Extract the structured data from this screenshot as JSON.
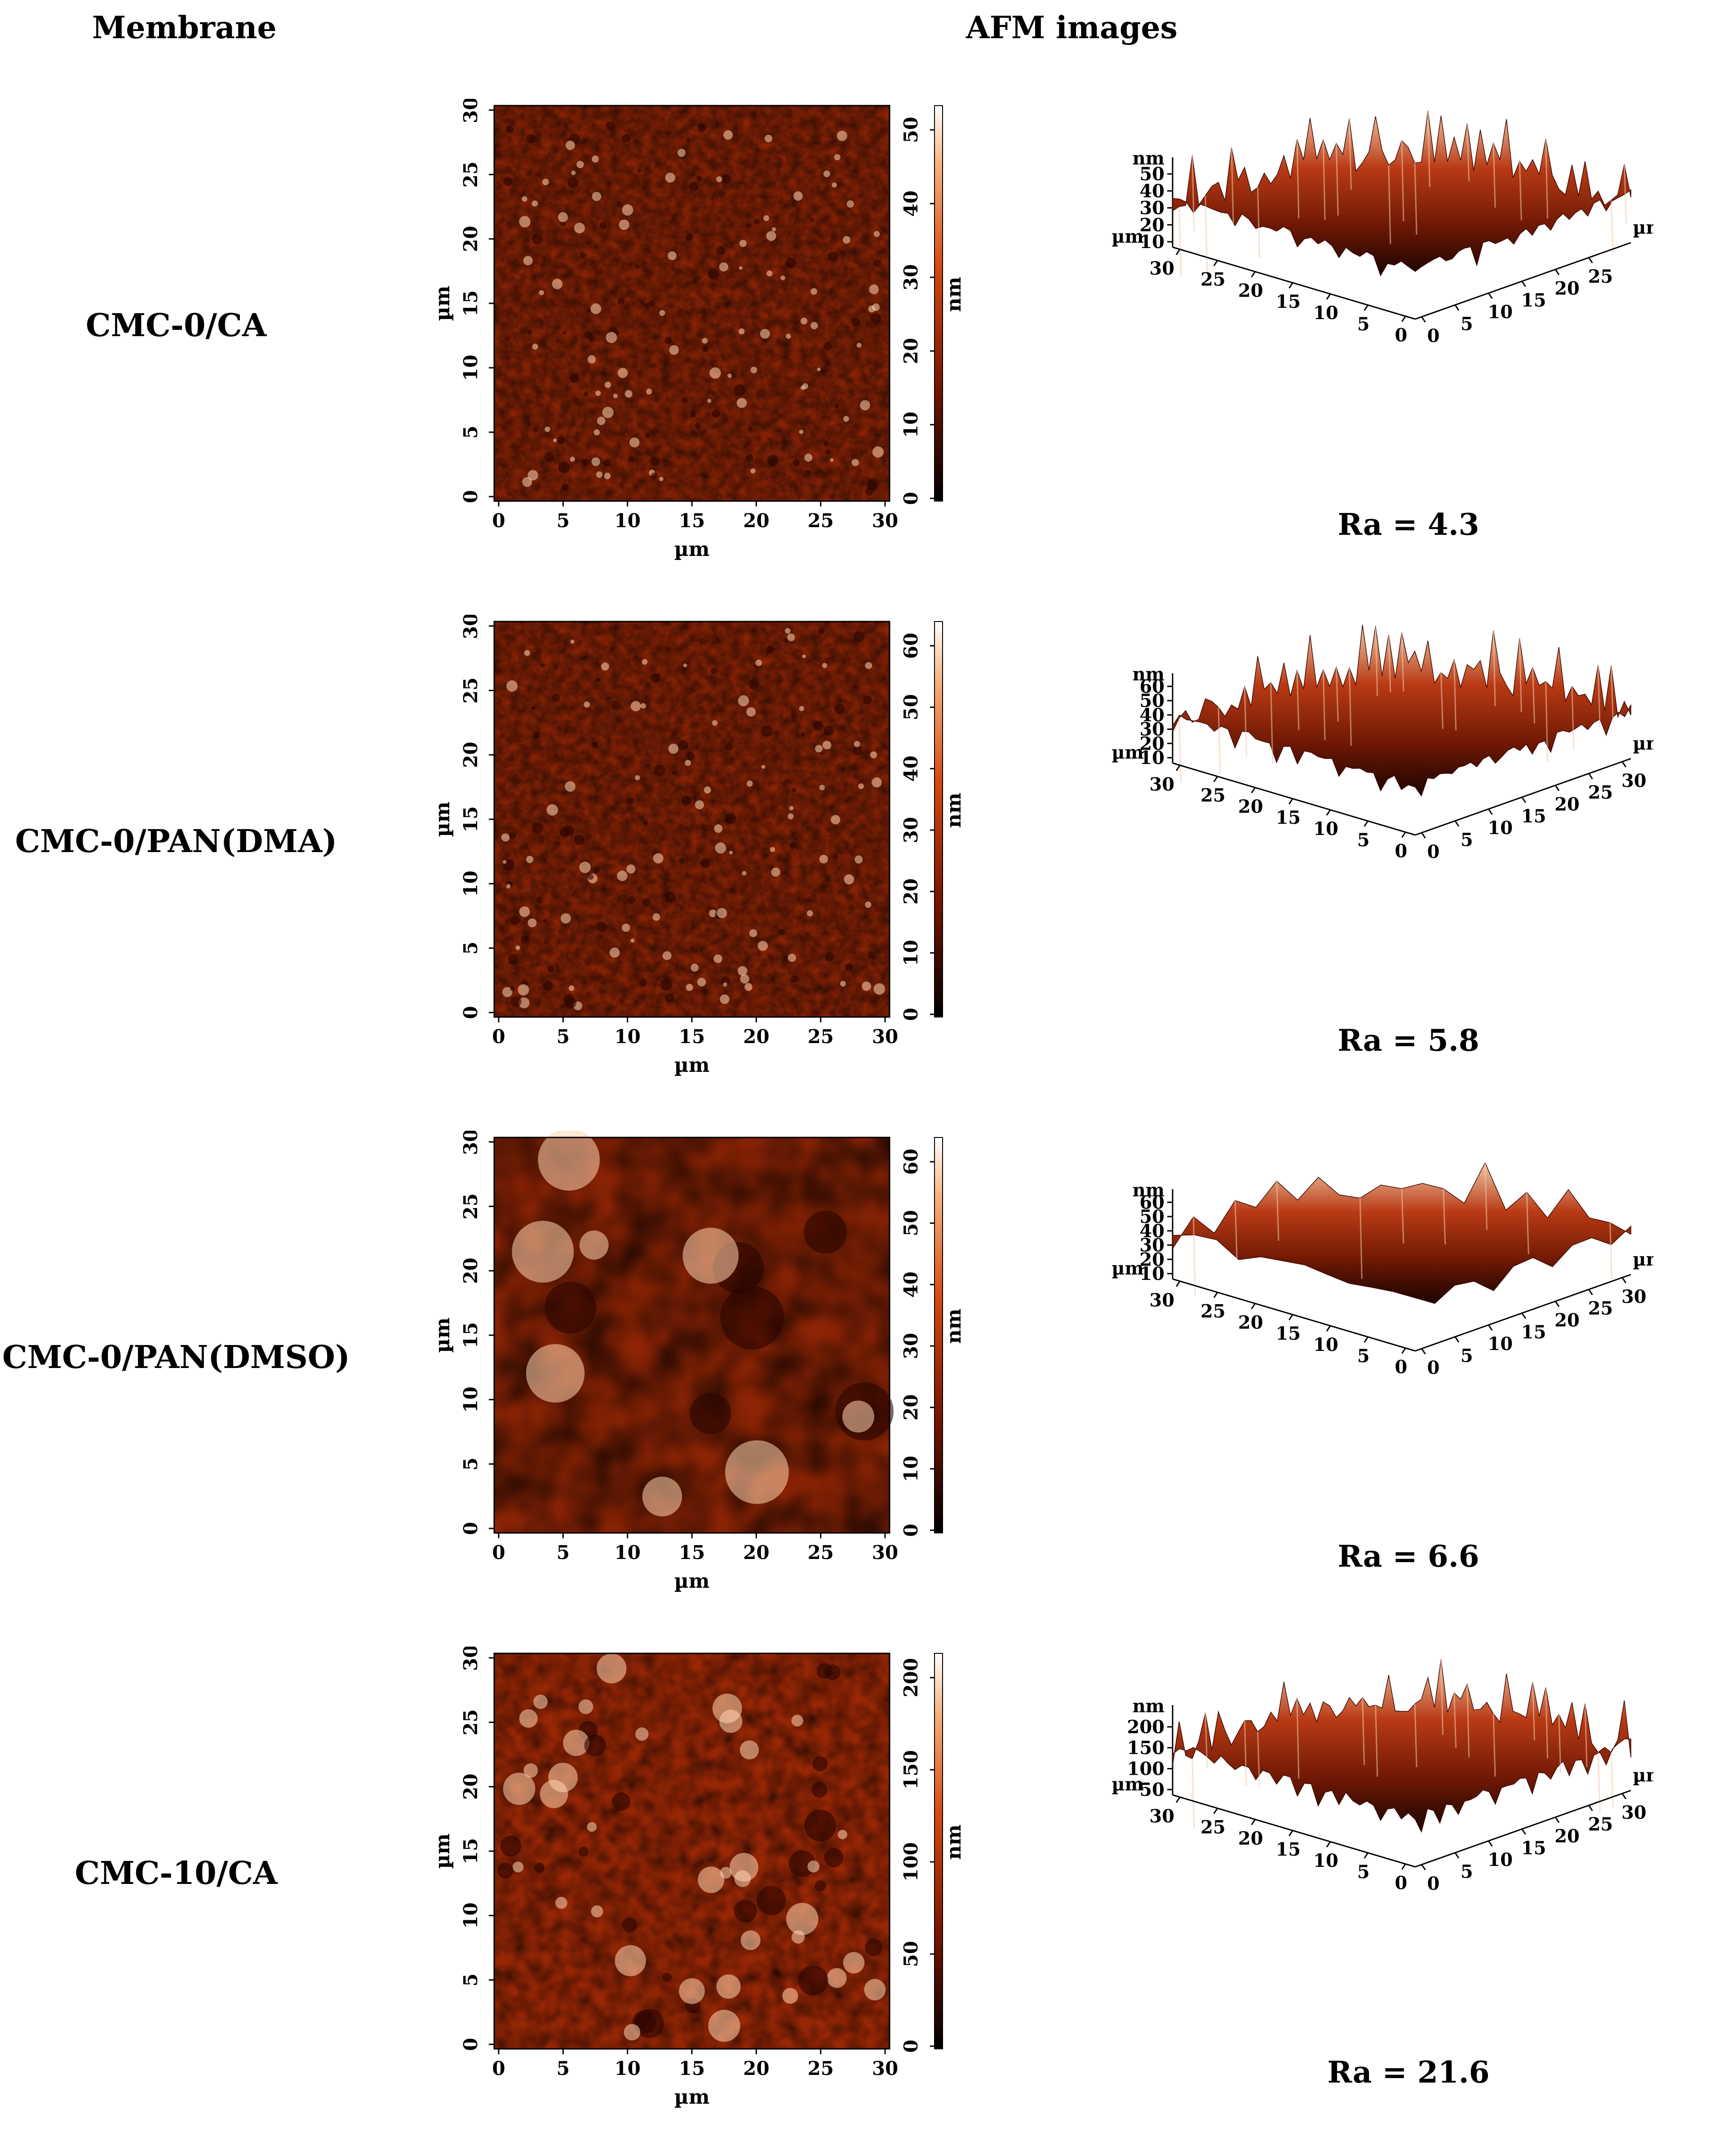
{
  "headers": {
    "membrane": "Membrane",
    "afm": "AFM images"
  },
  "axis_unit": "µm",
  "height_unit": "nm",
  "xy_ticks": [
    "0",
    "5",
    "10",
    "15",
    "20",
    "25",
    "30"
  ],
  "colormap": {
    "low": "#1a0200",
    "mid": "#c23c0a",
    "high": "#ffffff"
  },
  "rows": [
    {
      "membrane": "CMC-0/CA",
      "ra": "Ra = 4.3",
      "colorbar_ticks": [
        "0",
        "10",
        "20",
        "30",
        "40",
        "50"
      ],
      "z_ticks": [
        "10",
        "20",
        "30",
        "40",
        "50"
      ],
      "texture": "fine"
    },
    {
      "membrane": "CMC-0/PAN(DMA)",
      "ra": "Ra = 5.8",
      "colorbar_ticks": [
        "0",
        "10",
        "20",
        "30",
        "40",
        "50",
        "60"
      ],
      "z_ticks": [
        "10",
        "20",
        "30",
        "40",
        "50",
        "60"
      ],
      "texture": "fine"
    },
    {
      "membrane": "CMC-0/PAN(DMSO)",
      "ra": "Ra = 6.6",
      "colorbar_ticks": [
        "0",
        "10",
        "20",
        "30",
        "40",
        "50",
        "60"
      ],
      "z_ticks": [
        "10",
        "20",
        "30",
        "40",
        "50",
        "60"
      ],
      "texture": "smooth"
    },
    {
      "membrane": "CMC-10/CA",
      "ra": "Ra = 21.6",
      "colorbar_ticks": [
        "0",
        "50",
        "100",
        "150",
        "200"
      ],
      "z_ticks": [
        "50",
        "100",
        "150",
        "200"
      ],
      "texture": "blobby"
    }
  ]
}
